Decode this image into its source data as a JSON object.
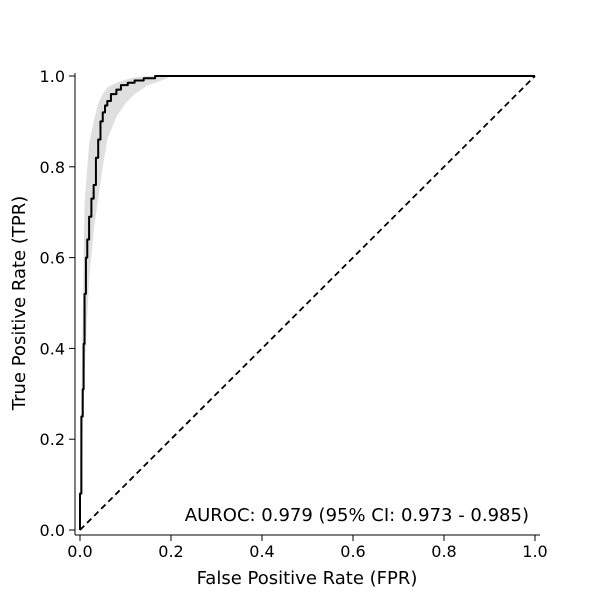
{
  "chart_data": {
    "type": "line",
    "title": "",
    "xlabel": "False Positive Rate (FPR)",
    "ylabel": "True Positive Rate (TPR)",
    "xlim": [
      0,
      1
    ],
    "ylim": [
      0,
      1
    ],
    "xticks": [
      0.0,
      0.2,
      0.4,
      0.6,
      0.8,
      1.0
    ],
    "yticks": [
      0.0,
      0.2,
      0.4,
      0.6,
      0.8,
      1.0
    ],
    "xtick_labels": [
      "0.0",
      "0.2",
      "0.4",
      "0.6",
      "0.8",
      "1.0"
    ],
    "ytick_labels": [
      "0.0",
      "0.2",
      "0.4",
      "0.6",
      "0.8",
      "1.0"
    ],
    "grid": false,
    "annotation": "AUROC: 0.979 (95% CI: 0.973 - 0.985)",
    "colors": {
      "roc_line": "#000000",
      "ci_band": "#d9d9d9",
      "diagonal": "#000000"
    },
    "series": [
      {
        "style": "solid",
        "x": [
          0.0,
          0.0,
          0.003,
          0.003,
          0.006,
          0.006,
          0.008,
          0.008,
          0.01,
          0.01,
          0.013,
          0.013,
          0.016,
          0.016,
          0.02,
          0.02,
          0.025,
          0.025,
          0.03,
          0.03,
          0.035,
          0.035,
          0.04,
          0.04,
          0.045,
          0.045,
          0.05,
          0.05,
          0.055,
          0.055,
          0.06,
          0.06,
          0.068,
          0.068,
          0.08,
          0.08,
          0.09,
          0.09,
          0.105,
          0.105,
          0.12,
          0.12,
          0.14,
          0.14,
          0.165,
          0.165,
          1.0
        ],
        "y": [
          0.0,
          0.08,
          0.08,
          0.25,
          0.25,
          0.31,
          0.31,
          0.41,
          0.41,
          0.52,
          0.52,
          0.6,
          0.6,
          0.64,
          0.64,
          0.69,
          0.69,
          0.73,
          0.73,
          0.76,
          0.76,
          0.82,
          0.82,
          0.86,
          0.86,
          0.9,
          0.9,
          0.92,
          0.92,
          0.935,
          0.935,
          0.945,
          0.945,
          0.96,
          0.96,
          0.97,
          0.97,
          0.98,
          0.98,
          0.985,
          0.985,
          0.99,
          0.99,
          0.995,
          0.995,
          1.0,
          1.0
        ]
      },
      {
        "style": "dashed",
        "x": [
          0.0,
          1.0
        ],
        "y": [
          0.0,
          1.0
        ]
      }
    ],
    "ci_band": {
      "x": [
        0.0,
        0.01,
        0.02,
        0.03,
        0.04,
        0.05,
        0.06,
        0.08,
        0.1,
        0.12,
        0.15,
        0.18,
        0.2,
        1.0
      ],
      "upper": [
        0.12,
        0.72,
        0.85,
        0.9,
        0.94,
        0.96,
        0.975,
        0.985,
        0.992,
        0.997,
        1.0,
        1.0,
        1.0,
        1.0
      ],
      "lower": [
        0.0,
        0.35,
        0.55,
        0.66,
        0.73,
        0.8,
        0.86,
        0.91,
        0.94,
        0.96,
        0.98,
        0.99,
        1.0,
        1.0
      ]
    }
  }
}
